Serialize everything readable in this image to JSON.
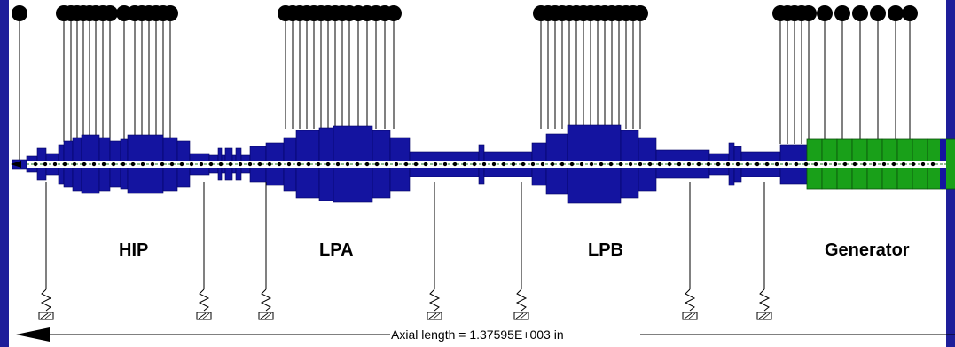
{
  "sections": [
    {
      "key": "hip",
      "label": "HIP"
    },
    {
      "key": "lpa",
      "label": "LPA"
    },
    {
      "key": "lpb",
      "label": "LPB"
    },
    {
      "key": "generator",
      "label": "Generator"
    }
  ],
  "axial_length_label": "Axial length = 1.37595E+003 in",
  "colors": {
    "shaft": "#1414a0",
    "shaft_edge": "#000060",
    "generator": "#19a019",
    "generator_edge": "#0a500a",
    "frame": "#1e1e9a",
    "centerline": "#1f7a1f"
  }
}
